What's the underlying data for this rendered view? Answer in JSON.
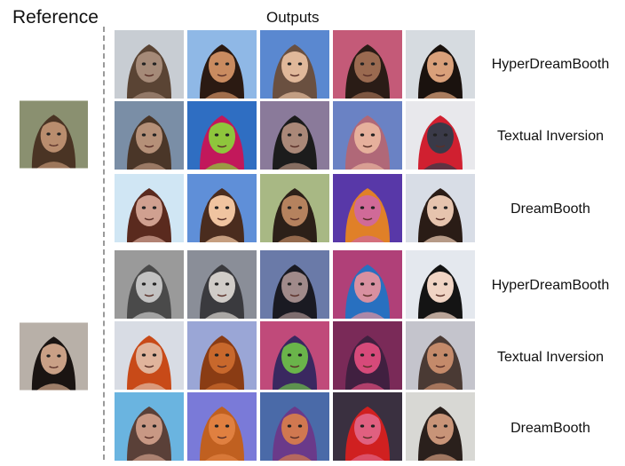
{
  "headers": {
    "reference": "Reference",
    "outputs": "Outputs"
  },
  "references": [
    {
      "name": "reference-man",
      "bg": "#8a9070",
      "skin": "#b98d6e",
      "hair": "#4a3424"
    },
    {
      "name": "reference-woman",
      "bg": "#b8b0a8",
      "skin": "#c9a086",
      "hair": "#1a1412"
    }
  ],
  "rows": [
    {
      "method": "HyperDreamBooth",
      "tiles": [
        {
          "bg": "#c8cdd3",
          "skin": "#a58a78",
          "hair": "#5a4434"
        },
        {
          "bg": "#8fb8e6",
          "skin": "#c98b60",
          "hair": "#2b1a12"
        },
        {
          "bg": "#5a88d0",
          "skin": "#e0b89a",
          "hair": "#6a5040"
        },
        {
          "bg": "#c45a78",
          "skin": "#9a6a50",
          "hair": "#2a1c16"
        },
        {
          "bg": "#d6dbe0",
          "skin": "#d9a07a",
          "hair": "#1a120e"
        }
      ]
    },
    {
      "method": "Textual Inversion",
      "tiles": [
        {
          "bg": "#7a8ea6",
          "skin": "#b59078",
          "hair": "#4a3628"
        },
        {
          "bg": "#2f6ec2",
          "skin": "#8ec63c",
          "hair": "#c2185b"
        },
        {
          "bg": "#8a7a9a",
          "skin": "#aa8878",
          "hair": "#1c1c1c"
        },
        {
          "bg": "#6a82c4",
          "skin": "#e6b09c",
          "hair": "#b06878"
        },
        {
          "bg": "#e8e8ec",
          "skin": "#3a3a48",
          "hair": "#d02030"
        }
      ]
    },
    {
      "method": "DreamBooth",
      "tiles": [
        {
          "bg": "#d0e6f4",
          "skin": "#d0a090",
          "hair": "#5a2a1e"
        },
        {
          "bg": "#5f8fd8",
          "skin": "#f0c4a0",
          "hair": "#4a2c1e"
        },
        {
          "bg": "#a8b884",
          "skin": "#b5825e",
          "hair": "#2c2018"
        },
        {
          "bg": "#5838a8",
          "skin": "#d06a98",
          "hair": "#e08028"
        },
        {
          "bg": "#d8dde6",
          "skin": "#e6c4ae",
          "hair": "#2a1c16"
        }
      ]
    },
    {
      "method": "HyperDreamBooth",
      "tiles": [
        {
          "bg": "#9a9a9a",
          "skin": "#c2c2c2",
          "hair": "#4a4a4a"
        },
        {
          "bg": "#8a8e98",
          "skin": "#d0ccc8",
          "hair": "#3a3a3e"
        },
        {
          "bg": "#6a7aa8",
          "skin": "#a08a8a",
          "hair": "#1a1a22"
        },
        {
          "bg": "#b04078",
          "skin": "#d890a0",
          "hair": "#2870c0"
        },
        {
          "bg": "#e4e8ee",
          "skin": "#f0d4c4",
          "hair": "#141414"
        }
      ]
    },
    {
      "method": "Textual Inversion",
      "tiles": [
        {
          "bg": "#d8dce4",
          "skin": "#e0b49c",
          "hair": "#c84a18"
        },
        {
          "bg": "#9aa6d6",
          "skin": "#c8682c",
          "hair": "#8a3c14"
        },
        {
          "bg": "#c04a7a",
          "skin": "#6ab44a",
          "hair": "#3a2860"
        },
        {
          "bg": "#7a2a58",
          "skin": "#d64a7a",
          "hair": "#402040"
        },
        {
          "bg": "#c4c4cc",
          "skin": "#c48a6a",
          "hair": "#4a3a34"
        }
      ]
    },
    {
      "method": "DreamBooth",
      "tiles": [
        {
          "bg": "#6ab4e0",
          "skin": "#c89884",
          "hair": "#5a4038"
        },
        {
          "bg": "#7a7ad8",
          "skin": "#e08040",
          "hair": "#c06020"
        },
        {
          "bg": "#4a6aa8",
          "skin": "#d07850",
          "hair": "#6a3a8a"
        },
        {
          "bg": "#3a3040",
          "skin": "#e06080",
          "hair": "#d02020"
        },
        {
          "bg": "#d8d8d4",
          "skin": "#c89478",
          "hair": "#2a201c"
        }
      ]
    }
  ]
}
